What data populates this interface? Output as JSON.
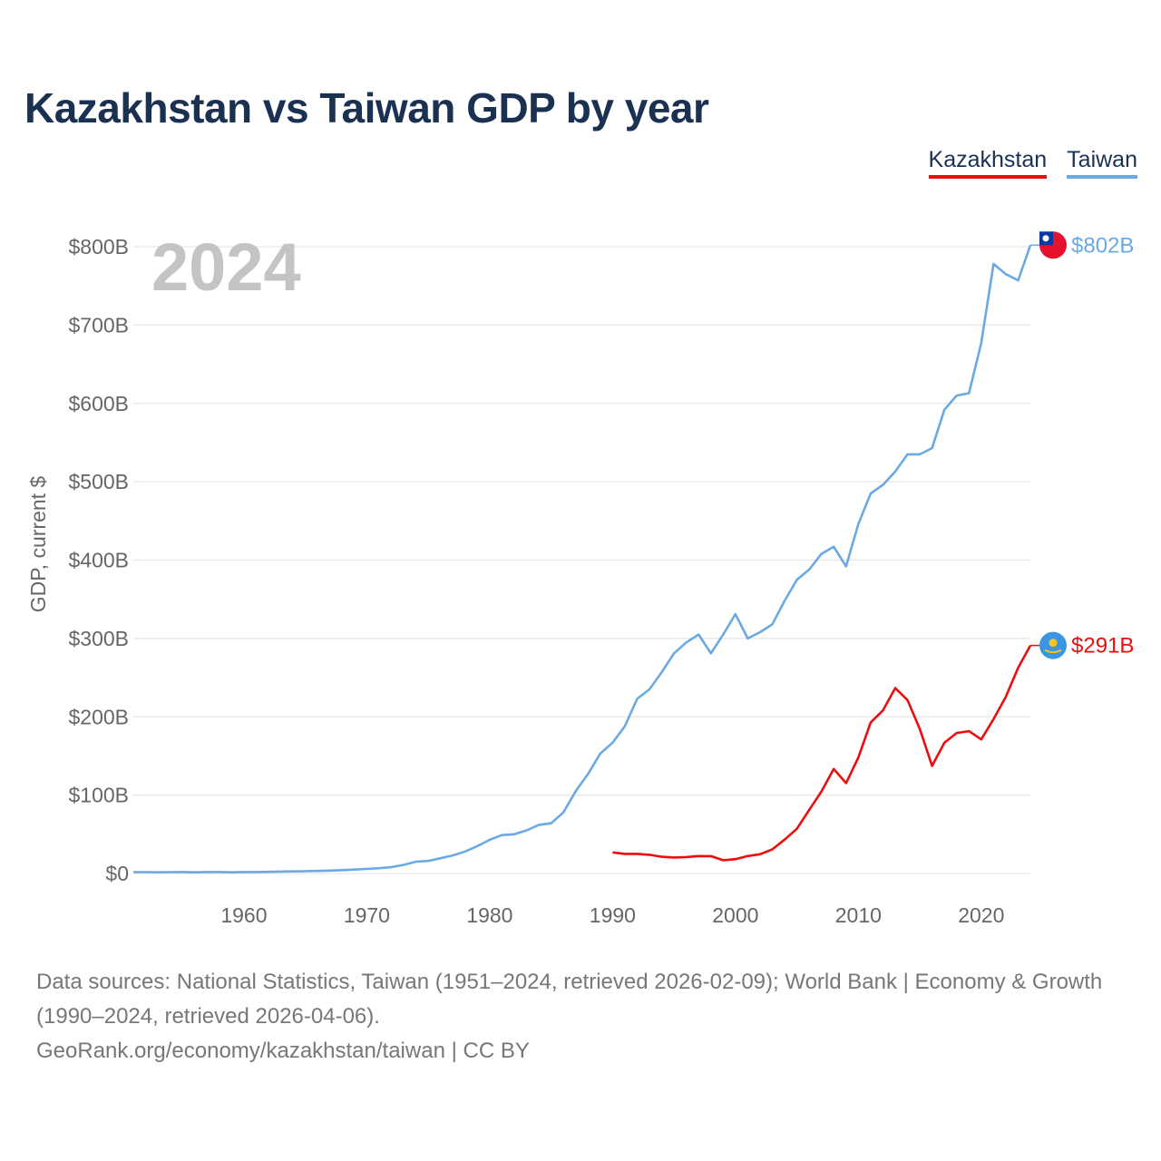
{
  "title": "Kazakhstan vs Taiwan GDP by year",
  "legend": {
    "kazakhstan": "Kazakhstan",
    "taiwan": "Taiwan"
  },
  "footer": {
    "sources": "Data sources: National Statistics, Taiwan (1951–2024, retrieved 2026-02-09); World Bank | Economy & Growth (1990–2024, retrieved 2026-04-06).",
    "link": "GeoRank.org/economy/kazakhstan/taiwan | CC BY"
  },
  "colors": {
    "kazakhstan": "#ee0c0c",
    "taiwan": "#6aaae4",
    "title": "#1b3152",
    "year": "#c4c4c4"
  },
  "chart_data": {
    "type": "line",
    "title": "Kazakhstan vs Taiwan GDP by year",
    "year_label": "2024",
    "ylabel": "GDP, current $",
    "xlabel": "",
    "xlim": [
      1951,
      2024
    ],
    "ylim": [
      0,
      800
    ],
    "unit": "billion USD",
    "x_ticks": [
      1960,
      1970,
      1980,
      1990,
      2000,
      2010,
      2020
    ],
    "y_ticks": [
      {
        "value": 0,
        "label": "$0"
      },
      {
        "value": 100,
        "label": "$100B"
      },
      {
        "value": 200,
        "label": "$200B"
      },
      {
        "value": 300,
        "label": "$300B"
      },
      {
        "value": 400,
        "label": "$400B"
      },
      {
        "value": 500,
        "label": "$500B"
      },
      {
        "value": 600,
        "label": "$600B"
      },
      {
        "value": 700,
        "label": "$700B"
      },
      {
        "value": 800,
        "label": "$800B"
      }
    ],
    "grid": true,
    "legend_position": "top-right",
    "series": [
      {
        "name": "Taiwan",
        "end_label": "$802B",
        "points": [
          [
            1951,
            1.7
          ],
          [
            1952,
            1.7
          ],
          [
            1953,
            1.5
          ],
          [
            1954,
            1.7
          ],
          [
            1955,
            1.9
          ],
          [
            1956,
            1.5
          ],
          [
            1957,
            1.8
          ],
          [
            1958,
            1.8
          ],
          [
            1959,
            1.5
          ],
          [
            1960,
            1.8
          ],
          [
            1961,
            1.8
          ],
          [
            1962,
            2.1
          ],
          [
            1963,
            2.4
          ],
          [
            1964,
            2.7
          ],
          [
            1965,
            2.9
          ],
          [
            1966,
            3.2
          ],
          [
            1967,
            3.7
          ],
          [
            1968,
            4.3
          ],
          [
            1969,
            5.0
          ],
          [
            1970,
            5.8
          ],
          [
            1971,
            6.7
          ],
          [
            1972,
            8.1
          ],
          [
            1973,
            11.0
          ],
          [
            1974,
            15.0
          ],
          [
            1975,
            16.0
          ],
          [
            1976,
            19.5
          ],
          [
            1977,
            23.0
          ],
          [
            1978,
            28.0
          ],
          [
            1979,
            35.0
          ],
          [
            1980,
            43.0
          ],
          [
            1981,
            49.0
          ],
          [
            1982,
            50.0
          ],
          [
            1983,
            55.0
          ],
          [
            1984,
            62.0
          ],
          [
            1985,
            64.0
          ],
          [
            1986,
            78.0
          ],
          [
            1987,
            105.0
          ],
          [
            1988,
            127.0
          ],
          [
            1989,
            153.0
          ],
          [
            1990,
            167.0
          ],
          [
            1991,
            188.0
          ],
          [
            1992,
            223.0
          ],
          [
            1993,
            235.0
          ],
          [
            1994,
            257.0
          ],
          [
            1995,
            281.0
          ],
          [
            1996,
            295.0
          ],
          [
            1997,
            305.0
          ],
          [
            1998,
            281.0
          ],
          [
            1999,
            305.0
          ],
          [
            2000,
            331.0
          ],
          [
            2001,
            300.0
          ],
          [
            2002,
            308.0
          ],
          [
            2003,
            318.0
          ],
          [
            2004,
            348.0
          ],
          [
            2005,
            375.0
          ],
          [
            2006,
            388.0
          ],
          [
            2007,
            408.0
          ],
          [
            2008,
            417.0
          ],
          [
            2009,
            392.0
          ],
          [
            2010,
            446.0
          ],
          [
            2011,
            485.0
          ],
          [
            2012,
            496.0
          ],
          [
            2013,
            513.0
          ],
          [
            2014,
            535.0
          ],
          [
            2015,
            535.0
          ],
          [
            2016,
            543.0
          ],
          [
            2017,
            592.0
          ],
          [
            2018,
            610.0
          ],
          [
            2019,
            613.0
          ],
          [
            2020,
            677.0
          ],
          [
            2021,
            778.0
          ],
          [
            2022,
            765.0
          ],
          [
            2023,
            757.0
          ],
          [
            2024,
            802.0
          ]
        ]
      },
      {
        "name": "Kazakhstan",
        "end_label": "$291B",
        "points": [
          [
            1990,
            26.9
          ],
          [
            1991,
            25.0
          ],
          [
            1992,
            25.0
          ],
          [
            1993,
            23.9
          ],
          [
            1994,
            21.3
          ],
          [
            1995,
            20.4
          ],
          [
            1996,
            21.0
          ],
          [
            1997,
            22.2
          ],
          [
            1998,
            22.1
          ],
          [
            1999,
            16.9
          ],
          [
            2000,
            18.3
          ],
          [
            2001,
            22.2
          ],
          [
            2002,
            24.6
          ],
          [
            2003,
            30.8
          ],
          [
            2004,
            43.2
          ],
          [
            2005,
            57.1
          ],
          [
            2006,
            81.0
          ],
          [
            2007,
            104.8
          ],
          [
            2008,
            133.4
          ],
          [
            2009,
            115.3
          ],
          [
            2010,
            148.0
          ],
          [
            2011,
            192.6
          ],
          [
            2012,
            208.0
          ],
          [
            2013,
            236.6
          ],
          [
            2014,
            221.4
          ],
          [
            2015,
            184.4
          ],
          [
            2016,
            137.3
          ],
          [
            2017,
            166.8
          ],
          [
            2018,
            179.3
          ],
          [
            2019,
            181.7
          ],
          [
            2020,
            171.1
          ],
          [
            2021,
            197.1
          ],
          [
            2022,
            225.5
          ],
          [
            2023,
            262.6
          ],
          [
            2024,
            291.0
          ]
        ]
      }
    ]
  }
}
